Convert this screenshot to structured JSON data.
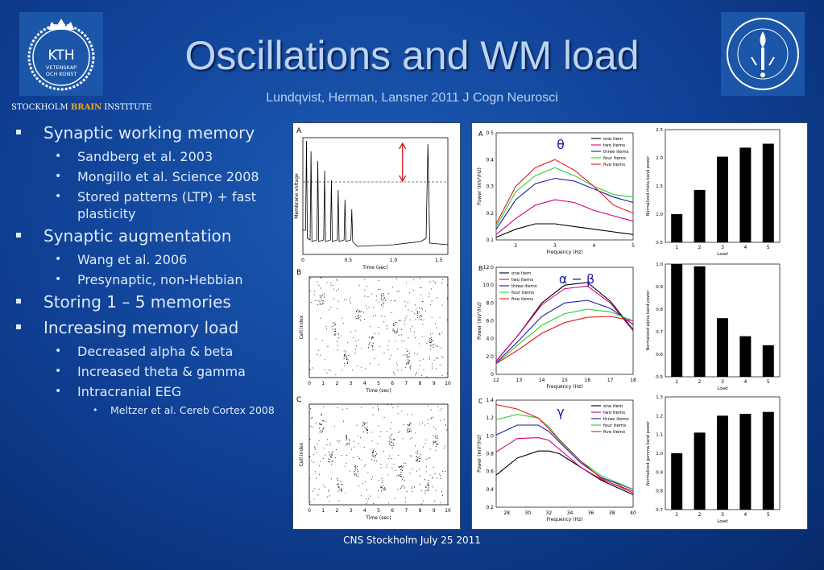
{
  "header": {
    "title": "Oscillations and WM load",
    "subtitle": "Lundqvist, Herman, Lansner 2011 J Cogn Neurosci",
    "institute_part1": "STOCKHOLM ",
    "institute_brain": "BRAIN",
    "institute_part2": " INSTITUTE",
    "kth_logo": {
      "line1": "KTH",
      "line2": "VETENSKAP",
      "line3": "OCH KONST"
    },
    "su_logo": {
      "ring_text": "UNIVERSITET · STOCKHOLMS"
    }
  },
  "bullets": [
    {
      "text": "Synaptic working memory",
      "children": [
        {
          "text": "Sandberg et al. 2003"
        },
        {
          "text": "Mongillo et al. Science 2008"
        },
        {
          "text": "Stored patterns (LTP) + fast plasticity"
        }
      ]
    },
    {
      "text": "Synaptic augmentation",
      "children": [
        {
          "text": "Wang et al. 2006"
        },
        {
          "text": "Presynaptic, non-Hebbian"
        }
      ]
    },
    {
      "text": "Storing 1 – 5 memories",
      "children": []
    },
    {
      "text": "Increasing memory load",
      "children": [
        {
          "text": "Decreased alpha & beta"
        },
        {
          "text": "Increased theta & gamma"
        },
        {
          "text": "Intracranial EEG",
          "children": [
            {
              "text": "Meltzer et al. Cereb Cortex 2008"
            }
          ]
        }
      ]
    }
  ],
  "footer": {
    "text": "CNS Stockholm July 25 2011"
  },
  "colors": {
    "series": [
      "#000000",
      "#d6007e",
      "#1a1aa8",
      "#2bd12b",
      "#e41a1c"
    ],
    "arrow": "#d40000"
  },
  "chart_data": [
    {
      "type": "line",
      "panel": "A",
      "xlabel": "Time (sec)",
      "ylabel": "Membrane voltage",
      "xticks": [
        "0",
        "0.5",
        "1.0",
        "1.5"
      ],
      "xlim": [
        0,
        1.6
      ],
      "annotation": "dashed threshold line with red double-headed arrow"
    },
    {
      "type": "scatter",
      "panel": "B",
      "xlabel": "Time (sec)",
      "ylabel": "Cell index",
      "xticks": [
        "0",
        "1",
        "2",
        "3",
        "4",
        "5",
        "6",
        "7",
        "8",
        "9",
        "10"
      ],
      "xlim": [
        0,
        10
      ]
    },
    {
      "type": "scatter",
      "panel": "C",
      "xlabel": "Time (sec)",
      "ylabel": "Cell index",
      "xticks": [
        "0",
        "1",
        "2",
        "3",
        "4",
        "5",
        "6",
        "7",
        "8",
        "9",
        "10"
      ],
      "xlim": [
        0,
        10
      ]
    },
    {
      "type": "line",
      "panel": "A",
      "symbol": "θ",
      "xlabel": "Frequency (Hz)",
      "ylabel": "Power (mV²/Hz)",
      "xlim": [
        1.5,
        5
      ],
      "ylim": [
        0.1,
        0.5
      ],
      "xticks": [
        "2",
        "3",
        "4",
        "5"
      ],
      "yticks": [
        "0.1",
        "0.2",
        "0.3",
        "0.4",
        "0.5"
      ],
      "legend": "top-right",
      "series": [
        {
          "name": "one item",
          "x": [
            1.5,
            2,
            2.5,
            3,
            3.5,
            4,
            4.5,
            5
          ],
          "values": [
            0.11,
            0.14,
            0.16,
            0.16,
            0.15,
            0.14,
            0.13,
            0.12
          ]
        },
        {
          "name": "two items",
          "x": [
            1.5,
            2,
            2.5,
            3,
            3.5,
            4,
            4.5,
            5
          ],
          "values": [
            0.12,
            0.18,
            0.23,
            0.25,
            0.24,
            0.21,
            0.19,
            0.17
          ]
        },
        {
          "name": "three items",
          "x": [
            1.5,
            2,
            2.5,
            3,
            3.5,
            4,
            4.5,
            5
          ],
          "values": [
            0.14,
            0.25,
            0.31,
            0.33,
            0.32,
            0.29,
            0.26,
            0.24
          ]
        },
        {
          "name": "four items",
          "x": [
            1.5,
            2,
            2.5,
            3,
            3.5,
            4,
            4.5,
            5
          ],
          "values": [
            0.15,
            0.28,
            0.34,
            0.37,
            0.34,
            0.3,
            0.27,
            0.26
          ]
        },
        {
          "name": "five items",
          "x": [
            1.5,
            2,
            2.5,
            3,
            3.5,
            4,
            4.5,
            5
          ],
          "values": [
            0.16,
            0.3,
            0.37,
            0.4,
            0.36,
            0.3,
            0.23,
            0.2
          ]
        }
      ]
    },
    {
      "type": "line",
      "panel": "B",
      "symbol": "α − β",
      "xlabel": "Frequency (Hz)",
      "ylabel": "Power (mV²/Hz)",
      "xlim": [
        12,
        18
      ],
      "ylim": [
        0,
        12
      ],
      "xticks": [
        "12",
        "13",
        "14",
        "15",
        "16",
        "17",
        "18"
      ],
      "yticks": [
        "0",
        "2.0",
        "4.0",
        "6.0",
        "8.0",
        "10.0",
        "12.0"
      ],
      "legend": "top-left",
      "series": [
        {
          "name": "one item",
          "x": [
            12,
            13,
            14,
            15,
            16,
            17,
            18
          ],
          "values": [
            1.5,
            4.5,
            8.0,
            10.0,
            10.3,
            8.2,
            5.0
          ]
        },
        {
          "name": "two items",
          "x": [
            12,
            13,
            14,
            15,
            16,
            17,
            18
          ],
          "values": [
            1.5,
            4.5,
            7.8,
            9.6,
            9.9,
            8.0,
            4.9
          ]
        },
        {
          "name": "three items",
          "x": [
            12,
            13,
            14,
            15,
            16,
            17,
            18
          ],
          "values": [
            1.3,
            3.8,
            6.5,
            8.0,
            8.3,
            7.4,
            5.6
          ]
        },
        {
          "name": "four items",
          "x": [
            12,
            13,
            14,
            15,
            16,
            17,
            18
          ],
          "values": [
            1.2,
            3.4,
            5.5,
            6.8,
            7.3,
            7.0,
            6.0
          ]
        },
        {
          "name": "five items",
          "x": [
            12,
            13,
            14,
            15,
            16,
            17,
            18
          ],
          "values": [
            1.2,
            2.8,
            4.6,
            5.8,
            6.4,
            6.5,
            6.0
          ]
        }
      ]
    },
    {
      "type": "line",
      "panel": "C",
      "symbol": "γ",
      "xlabel": "Frequency (Hz)",
      "ylabel": "Power (mV²/Hz)",
      "xlim": [
        27,
        40
      ],
      "ylim": [
        0.2,
        1.4
      ],
      "xticks": [
        "28",
        "30",
        "32",
        "34",
        "36",
        "38",
        "40"
      ],
      "yticks": [
        "0.2",
        "0.4",
        "0.6",
        "0.8",
        "1.0",
        "1.2",
        "1.4"
      ],
      "legend": "top-right",
      "series": [
        {
          "name": "one item",
          "x": [
            27,
            29,
            31,
            32,
            33,
            35,
            37,
            40
          ],
          "values": [
            0.56,
            0.75,
            0.83,
            0.83,
            0.8,
            0.65,
            0.5,
            0.34
          ]
        },
        {
          "name": "two items",
          "x": [
            27,
            29,
            31,
            32,
            33,
            35,
            37,
            40
          ],
          "values": [
            0.82,
            0.97,
            0.98,
            0.95,
            0.85,
            0.65,
            0.51,
            0.38
          ]
        },
        {
          "name": "three items",
          "x": [
            27,
            29,
            31,
            32,
            33,
            35,
            37,
            40
          ],
          "values": [
            1.01,
            1.12,
            1.12,
            1.05,
            0.93,
            0.7,
            0.53,
            0.4
          ]
        },
        {
          "name": "four items",
          "x": [
            27,
            29,
            31,
            32,
            33,
            35,
            37,
            40
          ],
          "values": [
            1.18,
            1.24,
            1.2,
            1.1,
            0.96,
            0.72,
            0.55,
            0.4
          ]
        },
        {
          "name": "five items",
          "x": [
            27,
            29,
            31,
            32,
            33,
            35,
            37,
            40
          ],
          "values": [
            1.35,
            1.3,
            1.2,
            1.08,
            0.95,
            0.72,
            0.52,
            0.36
          ]
        }
      ]
    },
    {
      "type": "bar",
      "ylabel": "Normalized theta band power",
      "xlabel": "Load",
      "categories": [
        "1",
        "2",
        "3",
        "4",
        "5"
      ],
      "values": [
        1.0,
        1.43,
        2.02,
        2.18,
        2.25
      ],
      "ylim": [
        0.5,
        2.5
      ],
      "yticks": [
        "0.5",
        "1.0",
        "1.5",
        "2.0",
        "2.5"
      ]
    },
    {
      "type": "bar",
      "ylabel": "Normalized alpha band power",
      "xlabel": "Load",
      "categories": [
        "1",
        "2",
        "3",
        "4",
        "5"
      ],
      "values": [
        1.0,
        0.99,
        0.76,
        0.68,
        0.64
      ],
      "ylim": [
        0.5,
        1.0
      ],
      "yticks": [
        "0.5",
        "0.6",
        "0.7",
        "0.8",
        "0.9",
        "1.0"
      ]
    },
    {
      "type": "bar",
      "ylabel": "Normalized gamma band power",
      "xlabel": "Load",
      "categories": [
        "1",
        "2",
        "3",
        "4",
        "5"
      ],
      "values": [
        1.0,
        1.11,
        1.2,
        1.21,
        1.22
      ],
      "ylim": [
        0.7,
        1.3
      ],
      "yticks": [
        "0.7",
        "0.8",
        "0.9",
        "1.0",
        "1.1",
        "1.2",
        "1.3"
      ]
    }
  ]
}
